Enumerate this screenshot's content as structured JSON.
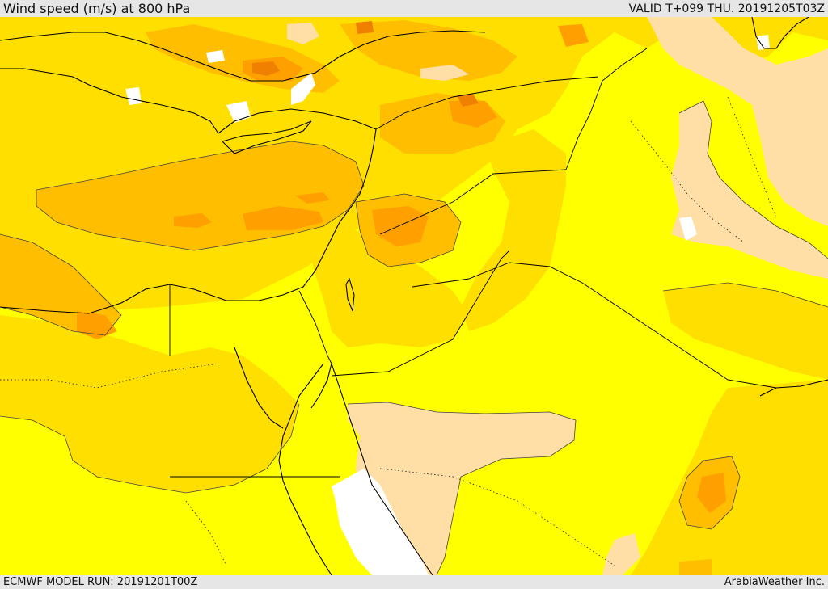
{
  "header": {
    "title": "Wind speed (m/s) at 800 hPa",
    "valid_time": "VALID T+099 THU. 20191205T03Z"
  },
  "footer": {
    "model_run": "ECMWF MODEL RUN: 20191201T00Z",
    "credit": "ArabiaWeather Inc."
  },
  "map": {
    "field": "wind speed",
    "level": "800 hPa",
    "colors": {
      "calm_white": "#ffffff",
      "light_peach": "#ffdfa6",
      "yellow": "#ffff00",
      "gold": "#ffdf00",
      "orange_light": "#ffbf00",
      "orange": "#ff9f00",
      "orange_dark": "#f08000"
    }
  }
}
